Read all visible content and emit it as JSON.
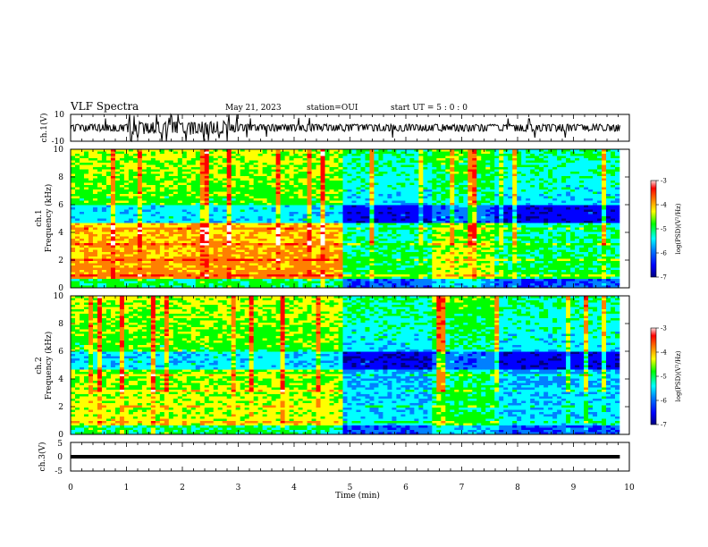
{
  "header": {
    "title": "VLF Spectra",
    "date": "May 21, 2023",
    "station": "station=OUI",
    "start": "start  UT  =   5 : 0  : 0"
  },
  "colors": {
    "colorbar_stops": [
      "#000080",
      "#0000ff",
      "#0080ff",
      "#00ffff",
      "#00ff00",
      "#ffff00",
      "#ff8000",
      "#ff0000",
      "#ffffff"
    ]
  },
  "chart_data": [
    {
      "type": "line",
      "ylabel": "ch.1(V)",
      "ylim": [
        -10,
        10
      ],
      "yticks": [
        "10",
        "-10"
      ],
      "x_range_min": [
        0,
        9.83
      ],
      "description_series": "waveform amplitude, large bursts between 1.0 and 3.0 min"
    },
    {
      "type": "heatmap",
      "ylabel": "ch.1\nFrequency (kHz)",
      "ylabel_lines": [
        "ch.1",
        "Frequency (kHz)"
      ],
      "ylim": [
        0,
        10
      ],
      "yticks": [
        "0",
        "2",
        "4",
        "6",
        "8",
        "10"
      ],
      "colorbar": {
        "label": "log(PSD)(V²/Hz)",
        "range": [
          -7,
          -3
        ],
        "ticks": [
          "-3",
          "-4",
          "-5",
          "-6",
          "-7"
        ]
      },
      "segments_min": [
        [
          0,
          4.85,
          "high"
        ],
        [
          4.85,
          6.5,
          "low"
        ],
        [
          6.5,
          7.6,
          "mid"
        ],
        [
          7.6,
          9.83,
          "low"
        ]
      ]
    },
    {
      "type": "heatmap",
      "ylabel_lines": [
        "ch.2",
        "Frequency (kHz)"
      ],
      "ylim": [
        0,
        10
      ],
      "yticks": [
        "0",
        "2",
        "4",
        "6",
        "8",
        "10"
      ],
      "colorbar": {
        "label": "log(PSD)(V²/Hz)",
        "range": [
          -7,
          -3
        ],
        "ticks": [
          "-3",
          "-4",
          "-5",
          "-6",
          "-7"
        ]
      },
      "segments_min": [
        [
          0,
          4.85,
          "high"
        ],
        [
          4.85,
          6.5,
          "low"
        ],
        [
          6.5,
          7.6,
          "mid"
        ],
        [
          7.6,
          9.83,
          "low"
        ]
      ]
    },
    {
      "type": "line",
      "ylabel": "ch.3(V)",
      "ylim": [
        -5,
        5
      ],
      "yticks": [
        "5",
        "0",
        "-5"
      ],
      "series": [
        {
          "x": [
            0,
            9.83
          ],
          "y": [
            0,
            0
          ]
        }
      ]
    }
  ],
  "x_axis": {
    "xlabel": "Time  (min)",
    "xlim": [
      0,
      10
    ],
    "ticks": [
      "0",
      "1",
      "2",
      "3",
      "4",
      "5",
      "6",
      "7",
      "8",
      "9",
      "10"
    ]
  }
}
